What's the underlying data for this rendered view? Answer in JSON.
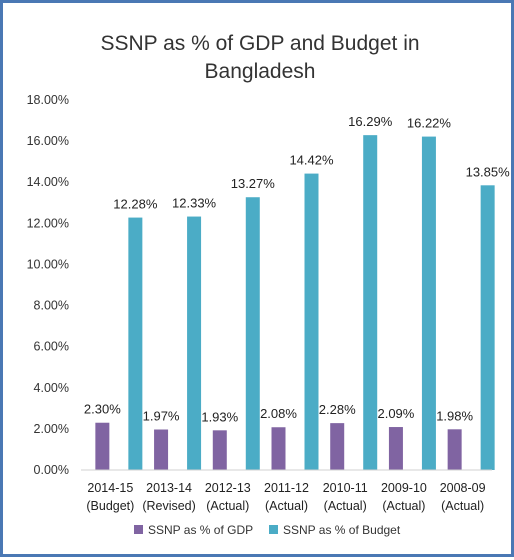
{
  "chart_data": {
    "type": "bar",
    "title": "SSNP as % of GDP and Budget in Bangladesh",
    "title_lines": [
      "SSNP as % of GDP and Budget in",
      "Bangladesh"
    ],
    "categories": [
      [
        "2014-15",
        "(Budget)"
      ],
      [
        "2013-14",
        "(Revised)"
      ],
      [
        "2012-13",
        "(Actual)"
      ],
      [
        "2011-12",
        "(Actual)"
      ],
      [
        "2010-11",
        "(Actual)"
      ],
      [
        "2009-10",
        "(Actual)"
      ],
      [
        "2008-09",
        "(Actual)"
      ]
    ],
    "series": [
      {
        "name": "SSNP as % of GDP",
        "color": "#8064a2",
        "values": [
          2.3,
          1.97,
          1.93,
          2.08,
          2.28,
          2.09,
          1.98
        ],
        "labels": [
          "2.30%",
          "1.97%",
          "1.93%",
          "2.08%",
          "2.28%",
          "2.09%",
          "1.98%"
        ]
      },
      {
        "name": "SSNP as % of Budget",
        "color": "#4bacc6",
        "values": [
          12.28,
          12.33,
          13.27,
          14.42,
          16.29,
          16.22,
          13.85
        ],
        "labels": [
          "12.28%",
          "12.33%",
          "13.27%",
          "14.42%",
          "16.29%",
          "16.22%",
          "13.85%"
        ]
      }
    ],
    "ylim": [
      0,
      18
    ],
    "yticks": [
      0,
      2,
      4,
      6,
      8,
      10,
      12,
      14,
      16,
      18
    ],
    "ytick_labels": [
      "0.00%",
      "2.00%",
      "4.00%",
      "6.00%",
      "8.00%",
      "10.00%",
      "12.00%",
      "14.00%",
      "16.00%",
      "18.00%"
    ],
    "grid": false,
    "legend_position": "bottom"
  }
}
